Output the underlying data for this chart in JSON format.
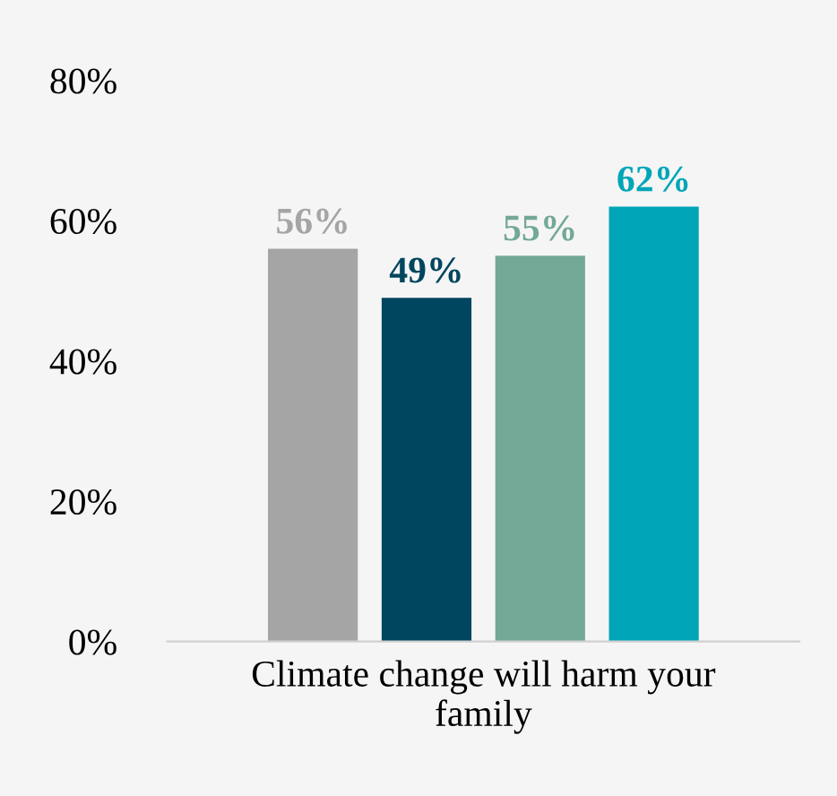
{
  "chart_data": {
    "type": "bar",
    "categories": [
      null,
      null,
      null,
      null
    ],
    "values": [
      56,
      49,
      55,
      62
    ],
    "colors": [
      "#a5a5a5",
      "#00465f",
      "#73a896",
      "#00a5b8"
    ],
    "value_labels": [
      "56%",
      "49%",
      "55%",
      "62%"
    ],
    "xlabel": "Climate change will harm your family",
    "ylim": [
      0,
      80
    ],
    "yticks": [
      {
        "value": 0,
        "label": "0%"
      },
      {
        "value": 20,
        "label": "20%"
      },
      {
        "value": 40,
        "label": "40%"
      },
      {
        "value": 60,
        "label": "60%"
      },
      {
        "value": 80,
        "label": "80%"
      }
    ],
    "grid": false
  }
}
